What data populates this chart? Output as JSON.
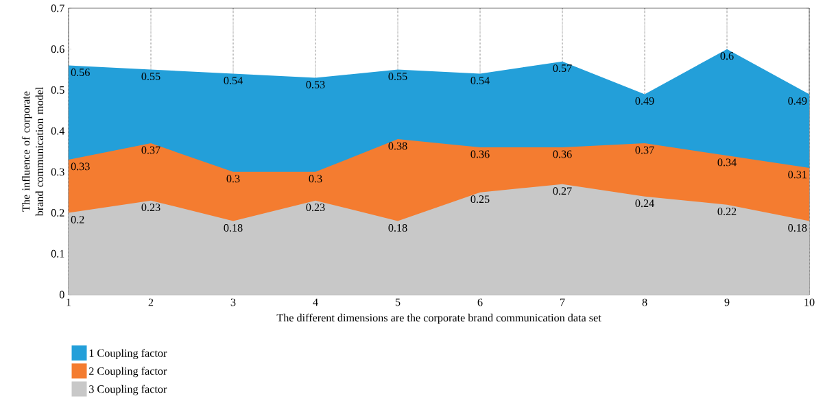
{
  "chart_data": {
    "type": "area",
    "xlabel": "The different dimensions are the corporate brand communication data set",
    "ylabel": "The influence of corporate brand communication model",
    "x": [
      1,
      2,
      3,
      4,
      5,
      6,
      7,
      8,
      9,
      10
    ],
    "series": [
      {
        "name": "1 Coupling factor",
        "color": "#239fd9",
        "values": [
          0.56,
          0.55,
          0.54,
          0.53,
          0.55,
          0.54,
          0.57,
          0.49,
          0.6,
          0.49
        ],
        "value_labels": [
          "0.56",
          "0.55",
          "0.54",
          "0.53",
          "0.55",
          "0.54",
          "0.57",
          "0.49",
          "0.6",
          "0.49"
        ]
      },
      {
        "name": "2 Coupling factor",
        "color": "#f47c30",
        "values": [
          0.33,
          0.37,
          0.3,
          0.3,
          0.38,
          0.36,
          0.36,
          0.37,
          0.34,
          0.31
        ],
        "value_labels": [
          "0.33",
          "0.37",
          "0.3",
          "0.3",
          "0.38",
          "0.36",
          "0.36",
          "0.37",
          "0.34",
          "0.31"
        ]
      },
      {
        "name": "3 Coupling factor",
        "color": "#c8c8c8",
        "values": [
          0.2,
          0.23,
          0.18,
          0.23,
          0.18,
          0.25,
          0.27,
          0.24,
          0.22,
          0.18
        ],
        "value_labels": [
          "0.2",
          "0.23",
          "0.18",
          "0.23",
          "0.18",
          "0.25",
          "0.27",
          "0.24",
          "0.22",
          "0.18"
        ]
      }
    ],
    "xlim": [
      1,
      10
    ],
    "ylim": [
      0,
      0.7
    ],
    "xticks": [
      1,
      2,
      3,
      4,
      5,
      6,
      7,
      8,
      9,
      10
    ],
    "yticks": [
      0,
      0.1,
      0.2,
      0.3,
      0.4,
      0.5,
      0.6,
      0.7
    ],
    "grid": "x",
    "legend": "bottom left"
  }
}
